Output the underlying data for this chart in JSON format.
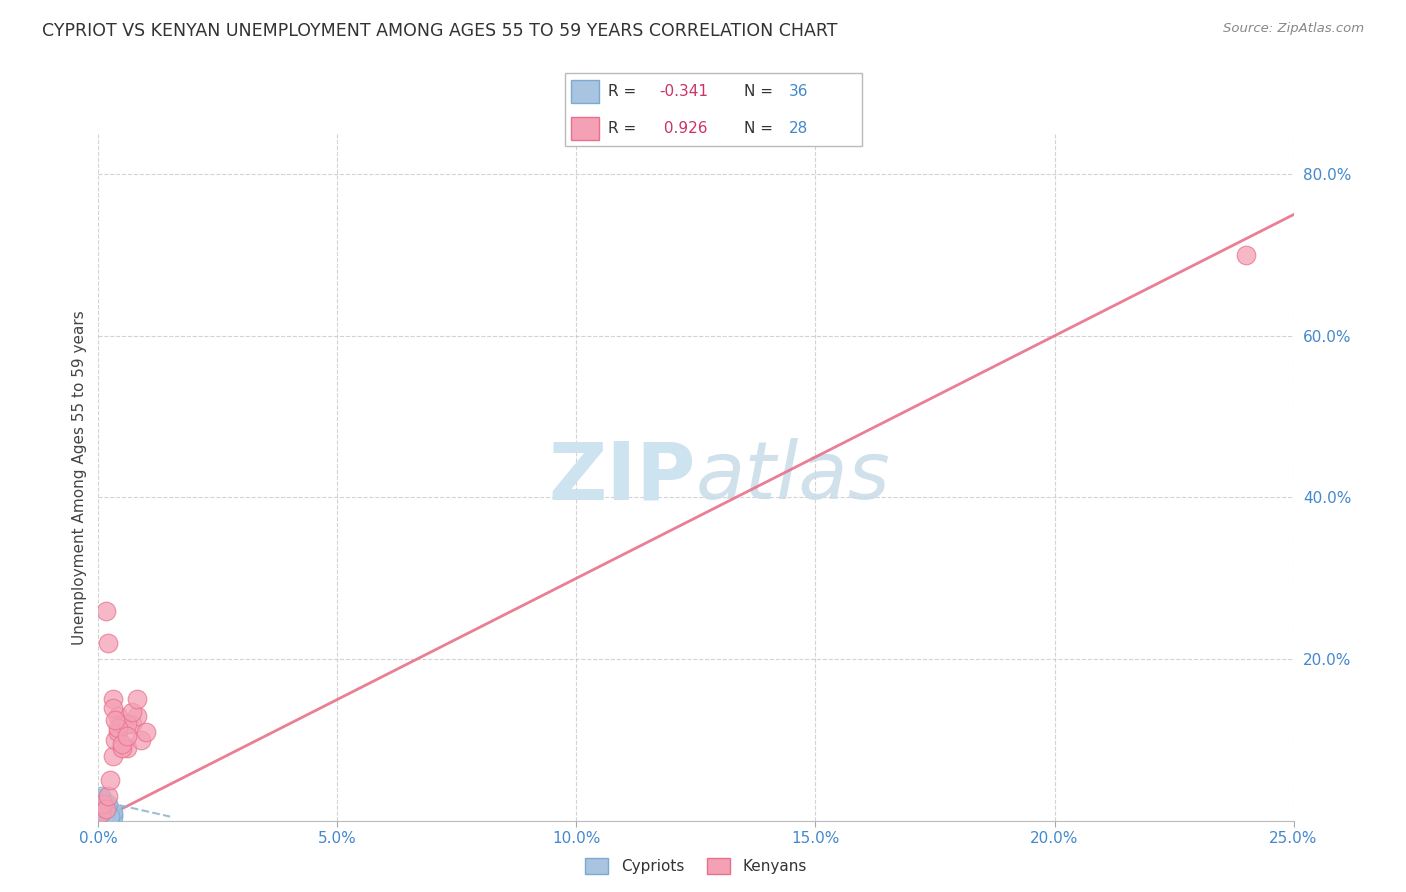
{
  "title": "CYPRIOT VS KENYAN UNEMPLOYMENT AMONG AGES 55 TO 59 YEARS CORRELATION CHART",
  "source": "Source: ZipAtlas.com",
  "ylabel": "Unemployment Among Ages 55 to 59 years",
  "xlim": [
    0,
    0.25
  ],
  "ylim": [
    0,
    0.85
  ],
  "xticks": [
    0.0,
    0.05,
    0.1,
    0.15,
    0.2,
    0.25
  ],
  "yticks": [
    0.0,
    0.2,
    0.4,
    0.6,
    0.8
  ],
  "xticklabels": [
    "0.0%",
    "5.0%",
    "10.0%",
    "15.0%",
    "20.0%",
    "25.0%"
  ],
  "yticklabels": [
    "",
    "20.0%",
    "40.0%",
    "60.0%",
    "80.0%"
  ],
  "cypriot_color": "#a8c4e0",
  "kenyan_color": "#f4a0b5",
  "cypriot_edge_color": "#7aaad0",
  "kenyan_edge_color": "#e8708a",
  "cypriot_line_color": "#8ab4cc",
  "kenyan_line_color": "#e8708a",
  "grid_color": "#c8c8c8",
  "watermark_color": "#cde3f0",
  "title_color": "#333333",
  "axis_label_color": "#444444",
  "tick_color": "#4488cc",
  "source_color": "#888888",
  "legend_R_color": "#cc3366",
  "legend_N_color": "#4488cc",
  "cypriot_x": [
    0.0005,
    0.001,
    0.0015,
    0.0005,
    0.002,
    0.001,
    0.003,
    0.0008,
    0.0012,
    0.0018,
    0.002,
    0.0025,
    0.0005,
    0.001,
    0.0015,
    0.002,
    0.003,
    0.0008,
    0.0012,
    0.0018,
    0.0022,
    0.0005,
    0.001,
    0.0015,
    0.002,
    0.0025,
    0.003,
    0.0008,
    0.0012,
    0.0018,
    0.0022,
    0.0005,
    0.001,
    0.0015,
    0.002,
    0.0025
  ],
  "cypriot_y": [
    0.01,
    0.005,
    0.008,
    0.015,
    0.003,
    0.012,
    0.007,
    0.018,
    0.004,
    0.009,
    0.006,
    0.013,
    0.02,
    0.002,
    0.016,
    0.011,
    0.004,
    0.022,
    0.008,
    0.014,
    0.003,
    0.025,
    0.009,
    0.006,
    0.017,
    0.005,
    0.011,
    0.028,
    0.007,
    0.019,
    0.004,
    0.03,
    0.013,
    0.008,
    0.021,
    0.006
  ],
  "kenyan_x": [
    0.0005,
    0.001,
    0.0015,
    0.002,
    0.0025,
    0.003,
    0.0035,
    0.004,
    0.005,
    0.006,
    0.007,
    0.008,
    0.009,
    0.01,
    0.0015,
    0.002,
    0.003,
    0.004,
    0.005,
    0.006,
    0.003,
    0.004,
    0.0035,
    0.005,
    0.006,
    0.007,
    0.008,
    0.24
  ],
  "kenyan_y": [
    0.01,
    0.02,
    0.015,
    0.03,
    0.05,
    0.08,
    0.1,
    0.11,
    0.12,
    0.09,
    0.12,
    0.13,
    0.1,
    0.11,
    0.26,
    0.22,
    0.15,
    0.13,
    0.09,
    0.12,
    0.14,
    0.115,
    0.125,
    0.095,
    0.105,
    0.135,
    0.15,
    0.7
  ],
  "kenyan_trendline_x": [
    0.0,
    0.25
  ],
  "kenyan_trendline_y": [
    0.0,
    0.75
  ],
  "cypriot_trendline_x": [
    0.0,
    0.015
  ],
  "cypriot_trendline_y": [
    0.025,
    0.005
  ]
}
